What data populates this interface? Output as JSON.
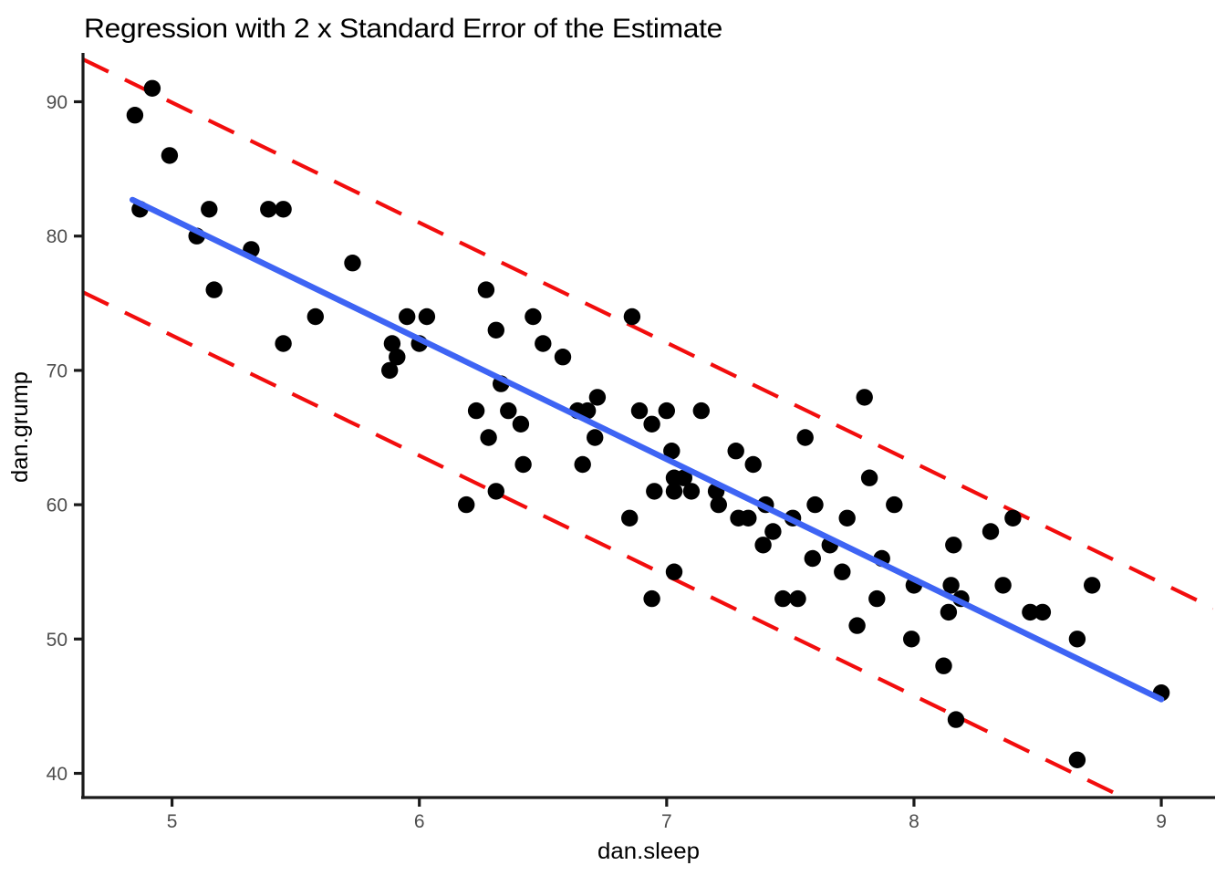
{
  "chart_data": {
    "type": "scatter",
    "title": "Regression with 2 x Standard Error of the Estimate",
    "xlabel": "dan.sleep",
    "ylabel": "dan.grump",
    "xlim": [
      4.64,
      9.21
    ],
    "ylim": [
      38.2,
      93.5
    ],
    "x_ticks": [
      5,
      6,
      7,
      8,
      9
    ],
    "y_ticks": [
      40,
      50,
      60,
      70,
      80,
      90
    ],
    "grid": false,
    "legend": "none",
    "point_color": "#000000",
    "line_color": "#3E64F4",
    "band_color": "#F20D0D",
    "axis_line_color": "#1A1A1A",
    "axis_text_color": "#4D4D4D",
    "regression": {
      "intercept": 125.97,
      "slope": -8.94,
      "x_start": 4.84,
      "x_end": 9.0,
      "se_band_offset": 8.67
    },
    "points": [
      [
        4.92,
        91
      ],
      [
        4.85,
        89
      ],
      [
        4.99,
        86
      ],
      [
        4.87,
        82
      ],
      [
        5.15,
        82
      ],
      [
        5.39,
        82
      ],
      [
        5.45,
        82
      ],
      [
        5.1,
        80
      ],
      [
        5.32,
        79
      ],
      [
        5.73,
        78
      ],
      [
        5.17,
        76
      ],
      [
        6.27,
        76
      ],
      [
        5.58,
        74
      ],
      [
        5.95,
        74
      ],
      [
        6.03,
        74
      ],
      [
        6.46,
        74
      ],
      [
        6.86,
        74
      ],
      [
        6.31,
        73
      ],
      [
        5.45,
        72
      ],
      [
        5.89,
        72
      ],
      [
        6.0,
        72
      ],
      [
        6.5,
        72
      ],
      [
        5.91,
        71
      ],
      [
        6.58,
        71
      ],
      [
        5.88,
        70
      ],
      [
        6.33,
        69
      ],
      [
        6.72,
        68
      ],
      [
        7.8,
        68
      ],
      [
        6.23,
        67
      ],
      [
        6.36,
        67
      ],
      [
        6.64,
        67
      ],
      [
        6.68,
        67
      ],
      [
        6.89,
        67
      ],
      [
        7.0,
        67
      ],
      [
        7.14,
        67
      ],
      [
        6.41,
        66
      ],
      [
        6.94,
        66
      ],
      [
        6.28,
        65
      ],
      [
        6.71,
        65
      ],
      [
        7.56,
        65
      ],
      [
        7.02,
        64
      ],
      [
        7.28,
        64
      ],
      [
        6.42,
        63
      ],
      [
        6.66,
        63
      ],
      [
        7.35,
        63
      ],
      [
        7.03,
        62
      ],
      [
        7.07,
        62
      ],
      [
        7.82,
        62
      ],
      [
        6.31,
        61
      ],
      [
        6.95,
        61
      ],
      [
        7.03,
        61
      ],
      [
        7.1,
        61
      ],
      [
        7.2,
        61
      ],
      [
        6.19,
        60
      ],
      [
        7.21,
        60
      ],
      [
        7.4,
        60
      ],
      [
        7.6,
        60
      ],
      [
        7.92,
        60
      ],
      [
        6.85,
        59
      ],
      [
        7.29,
        59
      ],
      [
        7.33,
        59
      ],
      [
        7.51,
        59
      ],
      [
        7.73,
        59
      ],
      [
        8.4,
        59
      ],
      [
        7.43,
        58
      ],
      [
        8.31,
        58
      ],
      [
        7.39,
        57
      ],
      [
        7.66,
        57
      ],
      [
        8.16,
        57
      ],
      [
        7.59,
        56
      ],
      [
        7.87,
        56
      ],
      [
        7.03,
        55
      ],
      [
        7.71,
        55
      ],
      [
        6.94,
        53
      ],
      [
        7.47,
        53
      ],
      [
        7.53,
        53
      ],
      [
        7.85,
        53
      ],
      [
        8.19,
        53
      ],
      [
        8.0,
        54
      ],
      [
        8.15,
        54
      ],
      [
        8.36,
        54
      ],
      [
        8.72,
        54
      ],
      [
        8.14,
        52
      ],
      [
        8.47,
        52
      ],
      [
        8.52,
        52
      ],
      [
        7.77,
        51
      ],
      [
        7.99,
        50
      ],
      [
        8.66,
        50
      ],
      [
        8.12,
        48
      ],
      [
        8.17,
        44
      ],
      [
        9.0,
        46
      ],
      [
        8.66,
        41
      ]
    ]
  }
}
